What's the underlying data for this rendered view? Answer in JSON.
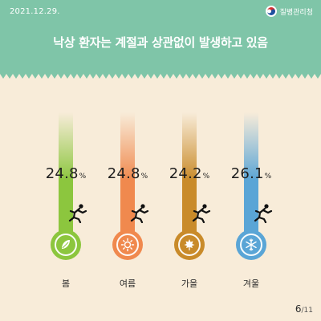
{
  "date": "2021.12.29.",
  "agency": {
    "name": "질병관리청",
    "logo_icon": "taeguk-emblem-icon"
  },
  "headline": "낙상 환자는 계절과 상관없이 발생하고 있음",
  "percent_sign": "%",
  "colors": {
    "header": "#7fc5a8",
    "background": "#f8ecd9",
    "spring": "#8cc63e",
    "summer": "#f0894e",
    "autumn": "#c98b2a",
    "winter": "#5aa5d6"
  },
  "seasons": [
    {
      "label": "봄",
      "value": "24.8",
      "icon": "leaf-icon"
    },
    {
      "label": "여름",
      "value": "24.8",
      "icon": "sun-icon"
    },
    {
      "label": "가을",
      "value": "24.2",
      "icon": "maple-leaf-icon"
    },
    {
      "label": "겨울",
      "value": "26.1",
      "icon": "snowflake-icon"
    }
  ],
  "pager": {
    "current": "6",
    "total": "/11"
  }
}
